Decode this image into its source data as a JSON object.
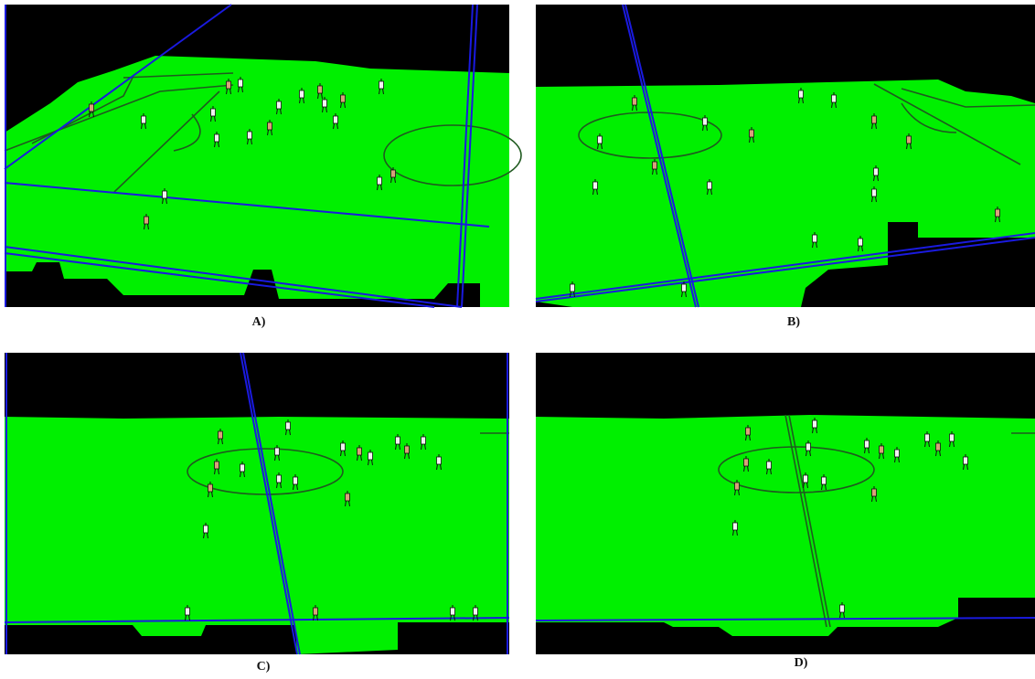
{
  "panels": [
    {
      "label": "A)"
    },
    {
      "label": "B)"
    },
    {
      "label": "C)"
    },
    {
      "label": "D)"
    }
  ]
}
